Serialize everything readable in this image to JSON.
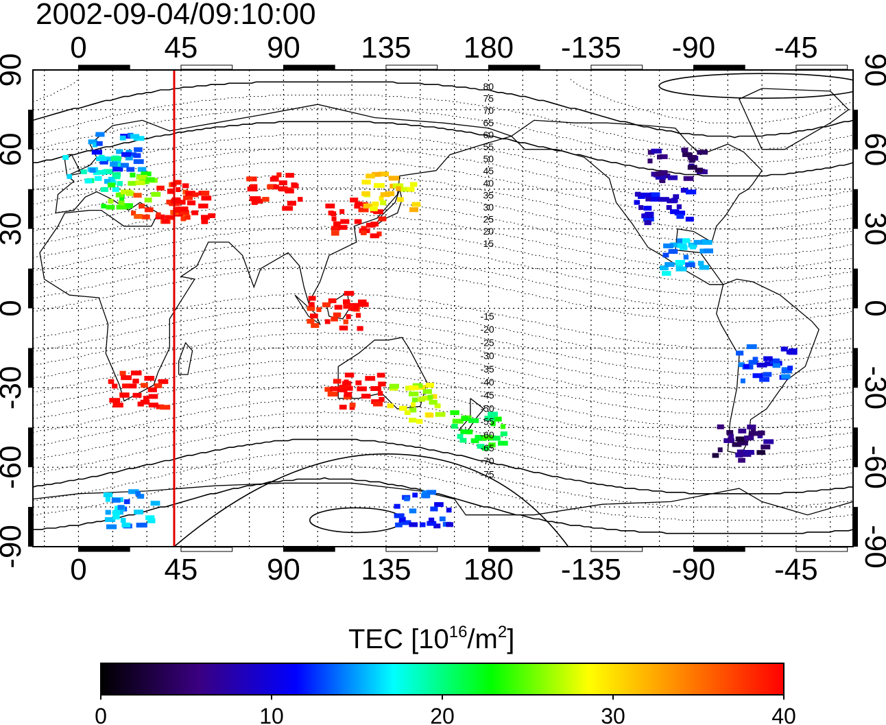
{
  "title": "2002-09-04/09:10:00",
  "axes": {
    "x_ticks": [
      "0",
      "45",
      "90",
      "135",
      "180",
      "-135",
      "-90",
      "-45"
    ],
    "y_ticks_left": [
      "90",
      "60",
      "30",
      "0",
      "-30",
      "-60",
      "-90"
    ],
    "y_ticks_right": [
      "90",
      "60",
      "30",
      "0",
      "-30",
      "-60",
      "-90"
    ]
  },
  "contour_labels_north": [
    "80",
    "75",
    "70",
    "65",
    "60",
    "55",
    "50",
    "45",
    "40",
    "35",
    "30",
    "25",
    "20",
    "15"
  ],
  "contour_labels_south": [
    "-15",
    "-20",
    "-25",
    "-30",
    "-35",
    "-40",
    "-45",
    "-50",
    "-55",
    "-60",
    "-65",
    "-70",
    "-75"
  ],
  "marker": {
    "longitude": 42,
    "color": "#e00000"
  },
  "colorbar": {
    "title_prefix": "TEC  [10",
    "title_sup1": "16",
    "title_mid": "/m",
    "title_sup2": "2",
    "title_suffix": "]",
    "ticks": [
      "0",
      "10",
      "20",
      "30",
      "40"
    ],
    "stops": [
      "#000000",
      "#3a0080",
      "#0000ff",
      "#00ffff",
      "#00ff00",
      "#ffff00",
      "#ff8000",
      "#ff0000"
    ]
  },
  "chart_data": {
    "type": "heatmap",
    "title": "2002-09-04/09:10:00",
    "projection": "equirectangular",
    "x_range": [
      -20,
      340
    ],
    "y_range": [
      -90,
      90
    ],
    "value_range": [
      0,
      40
    ],
    "units": "TEC [10^16/m^2]",
    "regions": [
      {
        "lon": 5,
        "lat": 52,
        "tec": 18
      },
      {
        "lon": 15,
        "lat": 60,
        "tec": 14
      },
      {
        "lon": 20,
        "lat": 45,
        "tec": 25
      },
      {
        "lon": 35,
        "lat": 42,
        "tec": 38
      },
      {
        "lon": 45,
        "lat": 40,
        "tec": 40
      },
      {
        "lon": 85,
        "lat": 45,
        "tec": 40
      },
      {
        "lon": 120,
        "lat": 35,
        "tec": 40
      },
      {
        "lon": 135,
        "lat": 45,
        "tec": 30
      },
      {
        "lon": 112,
        "lat": 0,
        "tec": 40
      },
      {
        "lon": 25,
        "lat": -30,
        "tec": 40
      },
      {
        "lon": 120,
        "lat": -30,
        "tec": 40
      },
      {
        "lon": 145,
        "lat": -35,
        "tec": 28
      },
      {
        "lon": 175,
        "lat": -45,
        "tec": 22
      },
      {
        "lon": 255,
        "lat": 40,
        "tec": 10
      },
      {
        "lon": 260,
        "lat": 55,
        "tec": 6
      },
      {
        "lon": 265,
        "lat": 20,
        "tec": 15
      },
      {
        "lon": 300,
        "lat": -20,
        "tec": 12
      },
      {
        "lon": 290,
        "lat": -50,
        "tec": 5
      },
      {
        "lon": 20,
        "lat": -75,
        "tec": 15
      },
      {
        "lon": 150,
        "lat": -75,
        "tec": 12
      }
    ]
  }
}
